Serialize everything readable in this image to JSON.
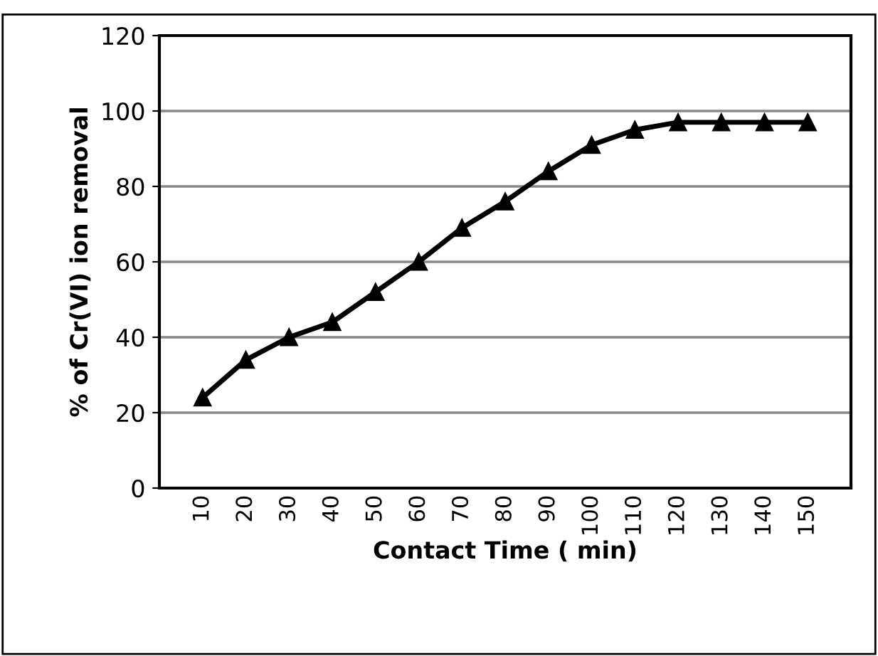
{
  "chart_data": {
    "type": "line",
    "xlabel": "Contact Time ( min)",
    "ylabel": "% of Cr(VI) ion removal",
    "categories": [
      "10",
      "20",
      "30",
      "40",
      "50",
      "60",
      "70",
      "80",
      "90",
      "100",
      "110",
      "120",
      "130",
      "140",
      "150"
    ],
    "series": [
      {
        "color": "#000000",
        "values": [
          24,
          34,
          40,
          44,
          52,
          60,
          69,
          76,
          84,
          91,
          95,
          97,
          97,
          97,
          97
        ]
      }
    ],
    "ylim": [
      0,
      120
    ],
    "yticks": [
      0,
      20,
      40,
      60,
      80,
      100,
      120
    ],
    "grid": "y",
    "marker": "triangle",
    "line_style": "solid",
    "legend": false
  }
}
